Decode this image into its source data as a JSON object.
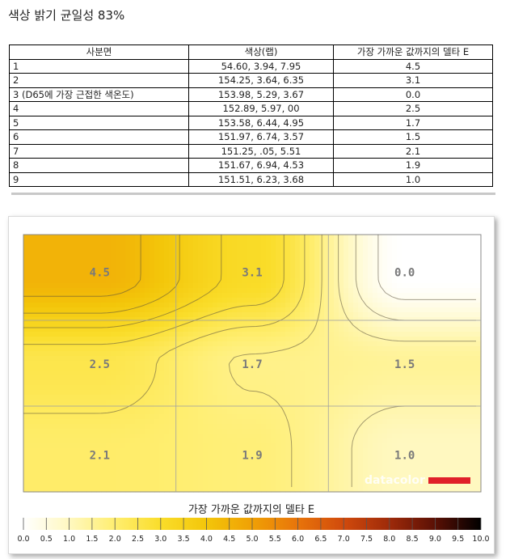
{
  "page": {
    "title": "색상 밝기 균일성 83%"
  },
  "table": {
    "headers": [
      "사분면",
      "색상(랩)",
      "가장 가까운 값까지의 델타 E"
    ],
    "rows": [
      [
        "1",
        "54.60,   3.94,   7.95",
        "4.5"
      ],
      [
        "2",
        "154.25,   3.64,   6.35",
        "3.1"
      ],
      [
        "3 (D65에 가장 근접한 색온도)",
        "153.98,   5.29,   3.67",
        "0.0"
      ],
      [
        "4",
        "152.89,   5.97,     00",
        "2.5"
      ],
      [
        "5",
        "153.58,   6.44,   4.95",
        "1.7"
      ],
      [
        "6",
        "151.97,   6.74,   3.57",
        "1.5"
      ],
      [
        "7",
        "151.25,     .05,   5.51",
        "2.1"
      ],
      [
        "8",
        "151.67,   6.94,   4.53",
        "1.9"
      ],
      [
        "9",
        "151.51,   6.23,   3.68",
        "1.0"
      ]
    ]
  },
  "chart_data": {
    "type": "heatmap",
    "grid": {
      "rows": 3,
      "cols": 3
    },
    "values": [
      [
        4.5,
        3.1,
        0.0
      ],
      [
        2.5,
        1.7,
        1.5
      ],
      [
        2.1,
        1.9,
        1.0
      ]
    ],
    "value_labels": [
      [
        "4.5",
        "3.1",
        "0.0"
      ],
      [
        "2.5",
        "1.7",
        "1.5"
      ],
      [
        "2.1",
        "1.9",
        "1.0"
      ]
    ],
    "colorbar": {
      "title": "가장 가까운 값까지의 델타 E",
      "range": [
        0,
        10
      ],
      "ticks": [
        "0.0",
        "0.5",
        "1.0",
        "1.5",
        "2.0",
        "2.5",
        "3.0",
        "3.5",
        "4.0",
        "4.5",
        "5.0",
        "5.5",
        "6.0",
        "6.5",
        "7.0",
        "7.5",
        "8.0",
        "8.5",
        "9.0",
        "9.5",
        "10.0"
      ],
      "stops": [
        "#ffffff",
        "#fff8c0",
        "#ffee70",
        "#fadd2a",
        "#f3c60a",
        "#f0a005",
        "#e8740a",
        "#d04a0c",
        "#9e2a0a",
        "#5a1005",
        "#000000"
      ]
    },
    "watermark": "datacolor",
    "accent_color": "#e0202a"
  }
}
